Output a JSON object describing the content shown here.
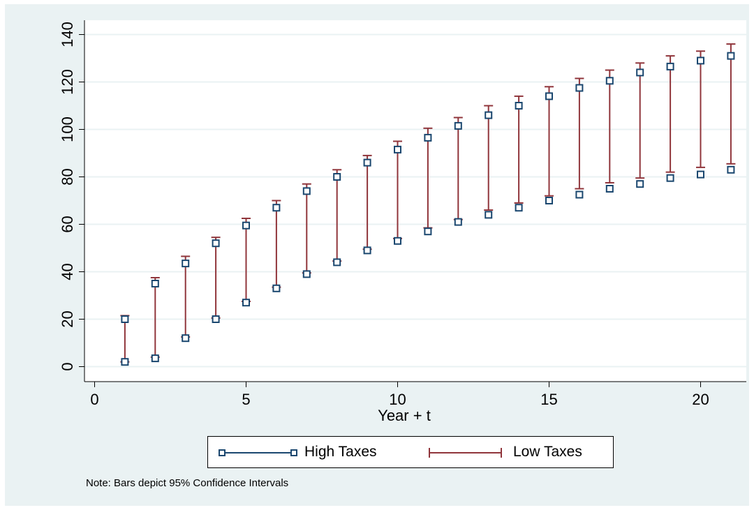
{
  "chart_data": {
    "type": "scatter",
    "xlabel": "Year + t",
    "ylabel": "",
    "xlim": [
      0,
      21
    ],
    "ylim": [
      0,
      140
    ],
    "xticks": [
      "0",
      "5",
      "10",
      "15",
      "20"
    ],
    "yticks": [
      "0",
      "20",
      "40",
      "60",
      "80",
      "100",
      "120",
      "140"
    ],
    "grid": true,
    "legend_position": "bottom",
    "series": [
      {
        "name": "High Taxes",
        "color": "#1a476f",
        "marker": "hollow-square",
        "x": [
          1,
          2,
          3,
          4,
          5,
          6,
          7,
          8,
          9,
          10,
          11,
          12,
          13,
          14,
          15,
          16,
          17,
          18,
          19,
          20,
          21
        ],
        "upper": [
          20,
          35,
          43.5,
          52,
          59.5,
          67,
          74,
          80,
          86,
          91.5,
          96.5,
          101.5,
          106,
          110,
          114,
          117.5,
          120.5,
          124,
          126.5,
          129,
          131
        ],
        "lower": [
          2,
          3.5,
          12,
          20,
          27,
          33,
          39,
          44,
          49,
          53,
          57,
          61,
          64,
          67,
          70,
          72.5,
          75,
          77,
          79.5,
          81,
          83
        ]
      },
      {
        "name": "Low Taxes",
        "color": "#90353b",
        "marker": "capped-bar",
        "x": [
          1,
          2,
          3,
          4,
          5,
          6,
          7,
          8,
          9,
          10,
          11,
          12,
          13,
          14,
          15,
          16,
          17,
          18,
          19,
          20,
          21
        ],
        "ci_high": [
          21.5,
          37.5,
          46.5,
          54.5,
          62.5,
          70,
          77,
          83,
          89,
          95,
          100.5,
          105,
          110,
          114,
          118,
          121.5,
          125,
          128,
          131,
          133,
          136
        ],
        "ci_low": [
          2,
          4,
          12.5,
          20.5,
          27.5,
          33.5,
          39.5,
          44.5,
          49.5,
          54,
          58.5,
          62,
          66,
          69,
          72,
          75,
          77.5,
          79.5,
          82,
          84,
          85.5
        ]
      }
    ],
    "note": "Note: Bars depict 95% Confidence Intervals"
  }
}
